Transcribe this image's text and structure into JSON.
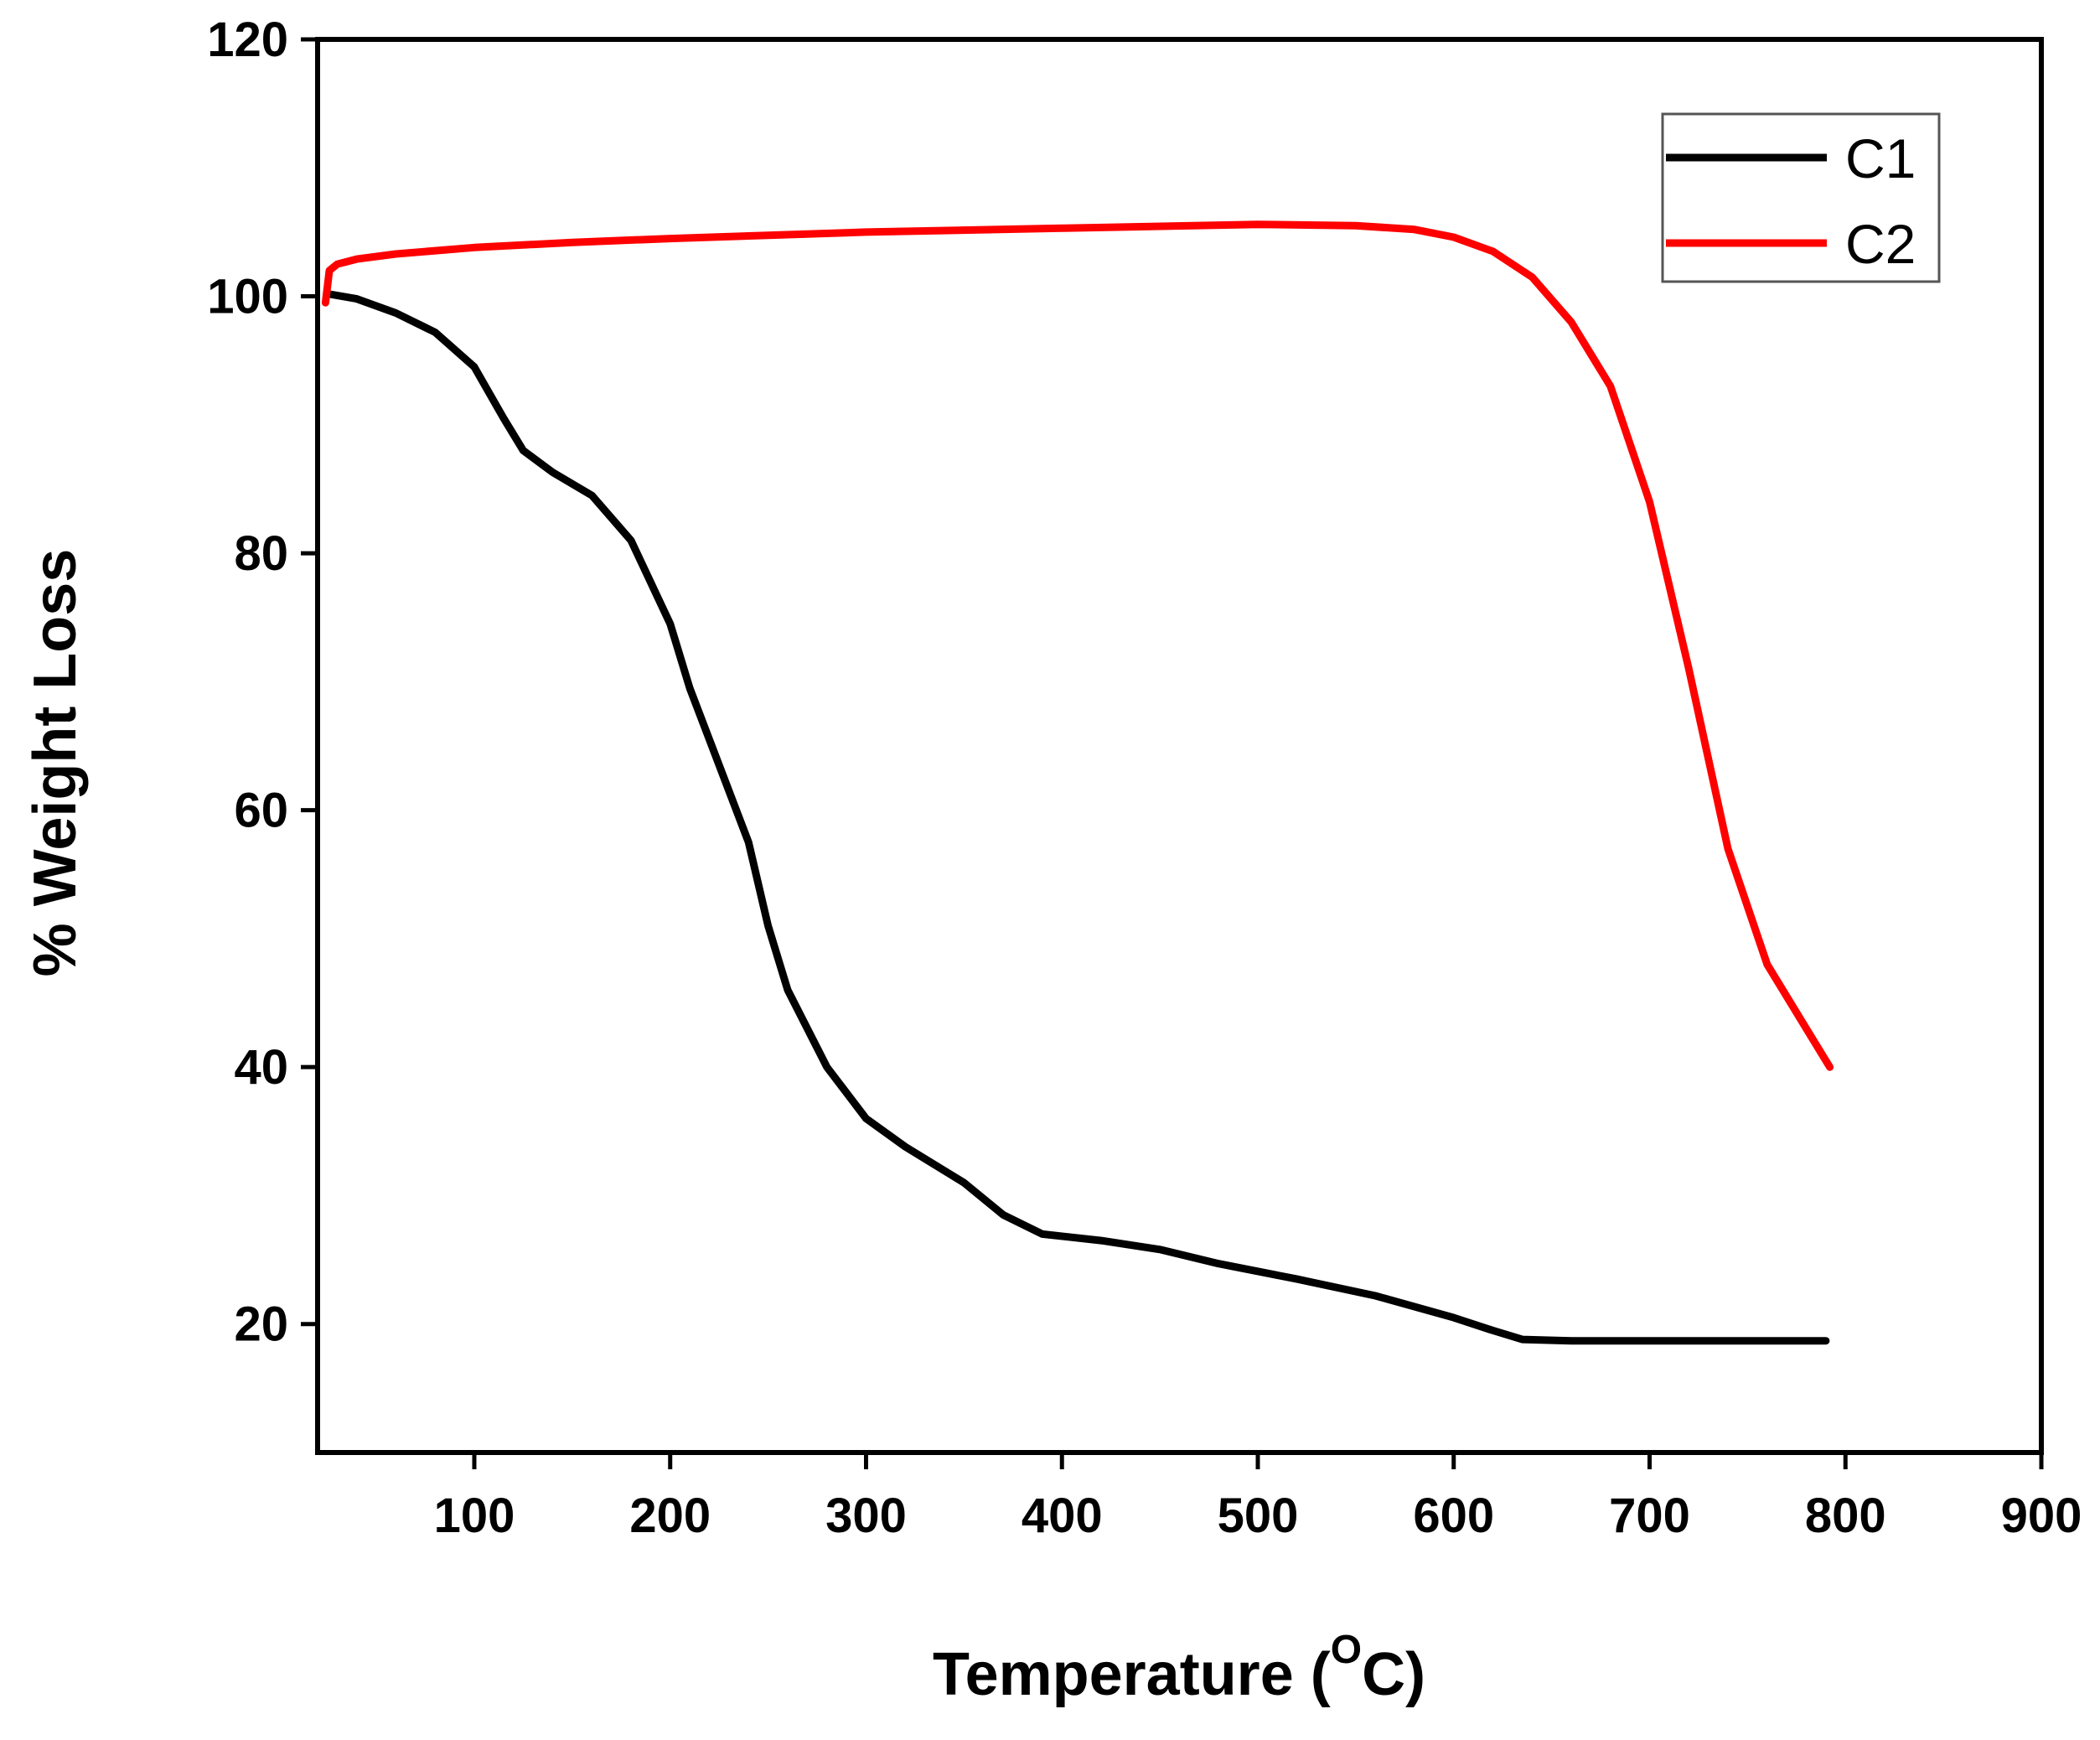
{
  "chart_data": {
    "type": "line",
    "title": "",
    "xlabel": {
      "prefix": "Temperature (",
      "superscript": "O",
      "suffix": "C)"
    },
    "ylabel": "% Weight Loss",
    "xlim": [
      20,
      900
    ],
    "ylim": [
      10,
      120
    ],
    "xticks": [
      100,
      200,
      300,
      400,
      500,
      600,
      700,
      800,
      900
    ],
    "yticks": [
      20,
      40,
      60,
      80,
      100,
      120
    ],
    "grid": false,
    "legend_position": "top-right",
    "series": [
      {
        "name": "C1",
        "color": "#000000",
        "x": [
          25,
          40,
          60,
          80,
          100,
          115,
          125,
          140,
          160,
          180,
          200,
          210,
          220,
          240,
          250,
          260,
          280,
          300,
          320,
          350,
          370,
          390,
          420,
          450,
          480,
          520,
          560,
          600,
          620,
          635,
          660,
          700,
          750,
          790
        ],
        "y": [
          100.2,
          99.8,
          98.7,
          97.2,
          94.5,
          90.5,
          88.0,
          86.3,
          84.5,
          81.0,
          74.5,
          69.5,
          65.5,
          57.5,
          51.0,
          46.0,
          40.0,
          36.0,
          33.8,
          31.0,
          28.5,
          27.0,
          26.5,
          25.8,
          24.7,
          23.5,
          22.2,
          20.5,
          19.5,
          18.8,
          18.7,
          18.7,
          18.7,
          18.7
        ]
      },
      {
        "name": "C2",
        "color": "#ff0000",
        "x": [
          24,
          26,
          30,
          40,
          60,
          100,
          150,
          200,
          300,
          400,
          500,
          550,
          580,
          600,
          620,
          640,
          660,
          680,
          700,
          720,
          740,
          760,
          780,
          792
        ],
        "y": [
          99.5,
          102.0,
          102.5,
          102.9,
          103.3,
          103.8,
          104.2,
          104.5,
          105.0,
          105.3,
          105.6,
          105.5,
          105.2,
          104.6,
          103.5,
          101.5,
          98.0,
          93.0,
          84.0,
          71.0,
          57.0,
          48.0,
          43.0,
          40.0
        ]
      }
    ]
  }
}
